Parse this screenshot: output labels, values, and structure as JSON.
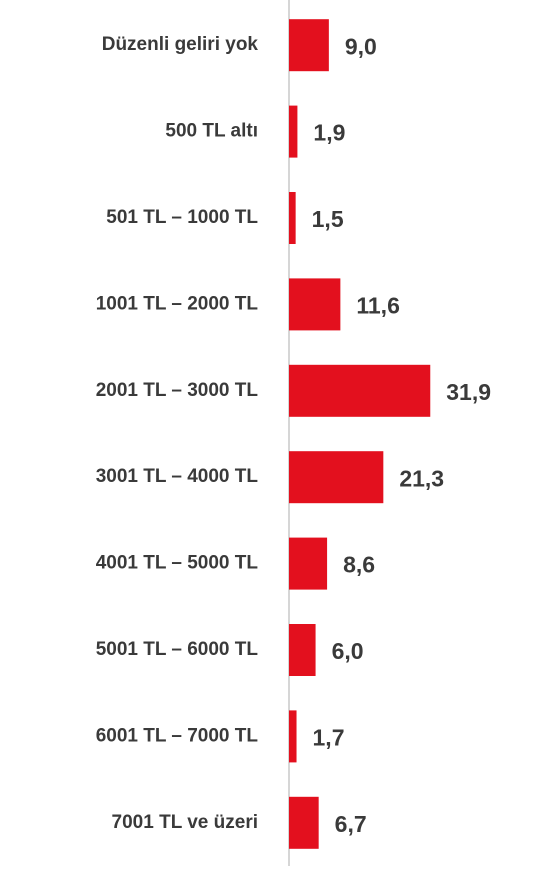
{
  "chart_data": {
    "type": "bar",
    "orientation": "horizontal",
    "categories": [
      "Düzenli geliri yok",
      "500 TL altı",
      "501 TL – 1000 TL",
      "1001 TL – 2000 TL",
      "2001 TL – 3000 TL",
      "3001 TL – 4000 TL",
      "4001 TL – 5000 TL",
      "5001 TL – 6000 TL",
      "6001 TL – 7000 TL",
      "7001 TL ve üzeri"
    ],
    "values": [
      9.0,
      1.9,
      1.5,
      11.6,
      31.9,
      21.3,
      8.6,
      6.0,
      1.7,
      6.7
    ],
    "value_labels": [
      "9,0",
      "1,9",
      "1,5",
      "11,6",
      "31,9",
      "21,3",
      "8,6",
      "6,0",
      "1,7",
      "6,7"
    ],
    "color": "#e3101e",
    "xlim": [
      0,
      56
    ]
  }
}
